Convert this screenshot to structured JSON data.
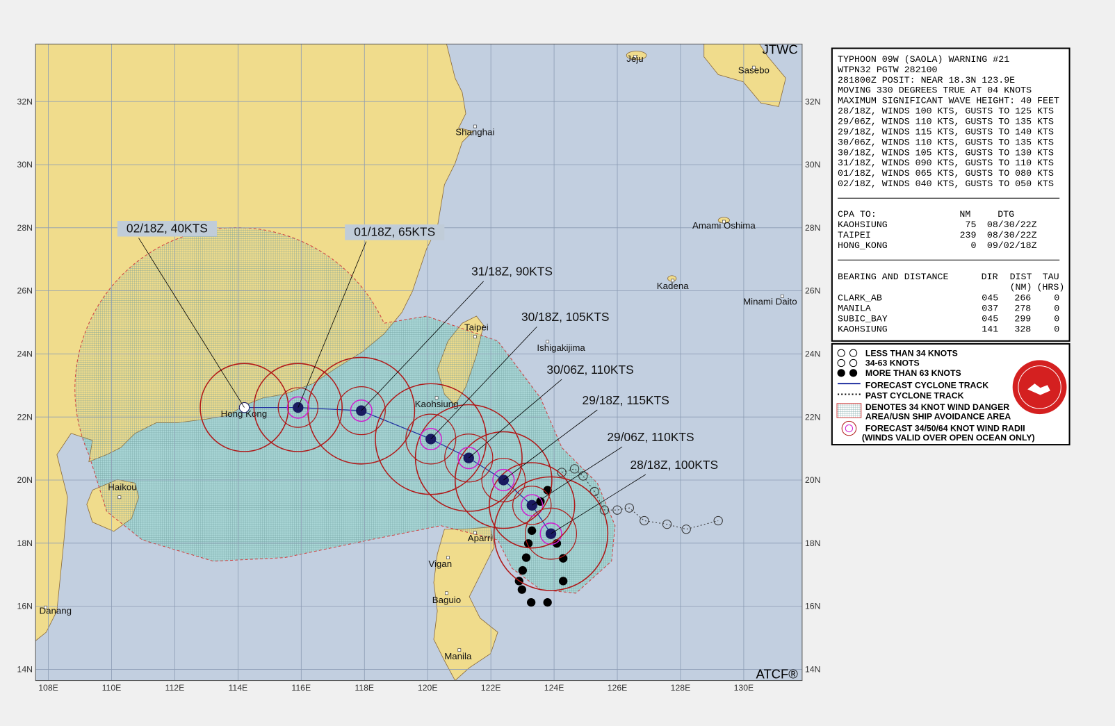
{
  "map": {
    "corner_top": "JTWC",
    "corner_bottom": "ATCF®",
    "lon_ticks": [
      {
        "value": 108,
        "label": "108E"
      },
      {
        "value": 110,
        "label": "110E"
      },
      {
        "value": 112,
        "label": "112E"
      },
      {
        "value": 114,
        "label": "114E"
      },
      {
        "value": 116,
        "label": "116E"
      },
      {
        "value": 118,
        "label": "118E"
      },
      {
        "value": 120,
        "label": "120E"
      },
      {
        "value": 122,
        "label": "122E"
      },
      {
        "value": 124,
        "label": "124E"
      },
      {
        "value": 126,
        "label": "126E"
      },
      {
        "value": 128,
        "label": "128E"
      },
      {
        "value": 130,
        "label": "130E"
      }
    ],
    "lat_ticks": [
      {
        "value": 32,
        "label": "32N"
      },
      {
        "value": 30,
        "label": "30N"
      },
      {
        "value": 28,
        "label": "28N"
      },
      {
        "value": 26,
        "label": "26N"
      },
      {
        "value": 24,
        "label": "24N"
      },
      {
        "value": 22,
        "label": "22N"
      },
      {
        "value": 20,
        "label": "20N"
      },
      {
        "value": 18,
        "label": "18N"
      },
      {
        "value": 16,
        "label": "16N"
      },
      {
        "value": 14,
        "label": "14N"
      }
    ],
    "cities": [
      "Jeju",
      "Sasebo",
      "Shanghai",
      "Amami Oshima",
      "Kadena",
      "Minami Daito",
      "Taipei",
      "Ishigakijima",
      "Kaohsiung",
      "Hong Kong",
      "Haikou",
      "Aparri",
      "Vigan",
      "Baguio",
      "Manila",
      "Danang"
    ],
    "forecast": [
      {
        "label": "28/18Z, 100KTS",
        "lat": 18.3,
        "lon": 123.9
      },
      {
        "label": "29/06Z, 110KTS",
        "lat": 19.2,
        "lon": 123.3
      },
      {
        "label": "29/18Z, 115KTS",
        "lat": 20.0,
        "lon": 122.4
      },
      {
        "label": "30/06Z, 110KTS",
        "lat": 20.7,
        "lon": 121.3
      },
      {
        "label": "30/18Z, 105KTS",
        "lat": 21.3,
        "lon": 120.1
      },
      {
        "label": "31/18Z, 90KTS",
        "lat": 22.2,
        "lon": 117.9
      },
      {
        "label": "01/18Z, 65KTS",
        "lat": 22.3,
        "lon": 115.9
      },
      {
        "label": "02/18Z, 40KTS",
        "lat": 22.3,
        "lon": 114.2
      }
    ]
  },
  "panel": {
    "lines": [
      "TYPHOON 09W (SAOLA) WARNING #21",
      "WTPN32 PGTW 282100",
      "281800Z POSIT: NEAR 18.3N 123.9E",
      "MOVING 330 DEGREES TRUE AT 04 KNOTS",
      "MAXIMUM SIGNIFICANT WAVE HEIGHT: 40 FEET",
      "28/18Z, WINDS 100 KTS, GUSTS TO 125 KTS",
      "29/06Z, WINDS 110 KTS, GUSTS TO 135 KTS",
      "29/18Z, WINDS 115 KTS, GUSTS TO 140 KTS",
      "30/06Z, WINDS 110 KTS, GUSTS TO 135 KTS",
      "30/18Z, WINDS 105 KTS, GUSTS TO 130 KTS",
      "31/18Z, WINDS 090 KTS, GUSTS TO 110 KTS",
      "01/18Z, WINDS 065 KTS, GUSTS TO 080 KTS",
      "02/18Z, WINDS 040 KTS, GUSTS TO 050 KTS"
    ],
    "cpa": {
      "header": [
        "CPA TO:",
        "NM",
        "DTG"
      ],
      "rows": [
        [
          "KAOHSIUNG",
          "75",
          "08/30/22Z"
        ],
        [
          "TAIPEI",
          "239",
          "08/30/22Z"
        ],
        [
          "HONG_KONG",
          "0",
          "09/02/18Z"
        ]
      ]
    },
    "bearing": {
      "header": [
        "BEARING AND DISTANCE",
        "DIR",
        "DIST",
        "TAU"
      ],
      "subheader": [
        "(NM)",
        "(HRS)"
      ],
      "rows": [
        [
          "CLARK_AB",
          "045",
          "266",
          "0"
        ],
        [
          "MANILA",
          "037",
          "278",
          "0"
        ],
        [
          "SUBIC_BAY",
          "045",
          "299",
          "0"
        ],
        [
          "KAOHSIUNG",
          "141",
          "328",
          "0"
        ]
      ]
    }
  },
  "legend": [
    "LESS THAN 34 KNOTS",
    "34-63 KNOTS",
    "MORE THAN 63 KNOTS",
    "FORECAST CYCLONE TRACK",
    "PAST CYCLONE TRACK",
    "DENOTES 34 KNOT WIND DANGER",
    "AREA/USN SHIP AVOIDANCE AREA",
    "FORECAST 34/50/64 KNOT WIND RADII",
    "(WINDS VALID OVER OPEN OCEAN ONLY)"
  ]
}
